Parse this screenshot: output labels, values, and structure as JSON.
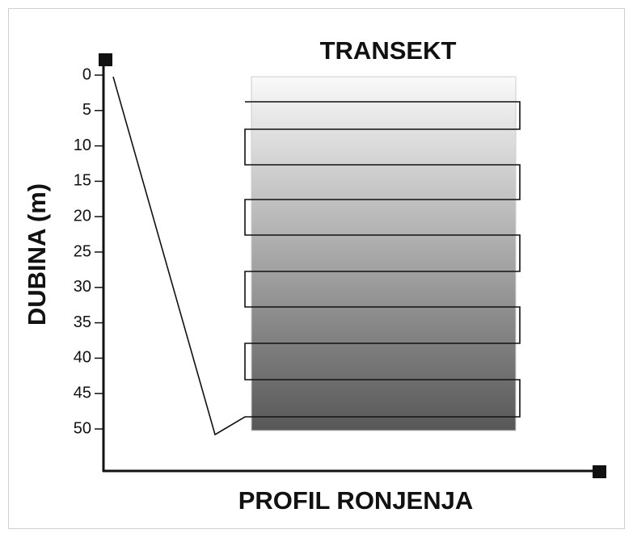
{
  "title": "TRANSEKT",
  "y_axis_label": "DUBINA (m)",
  "x_axis_label": "PROFIL RONJENJA",
  "depth_ticks": [
    "0",
    "5",
    "10",
    "15",
    "20",
    "25",
    "30",
    "35",
    "40",
    "45",
    "50"
  ]
}
